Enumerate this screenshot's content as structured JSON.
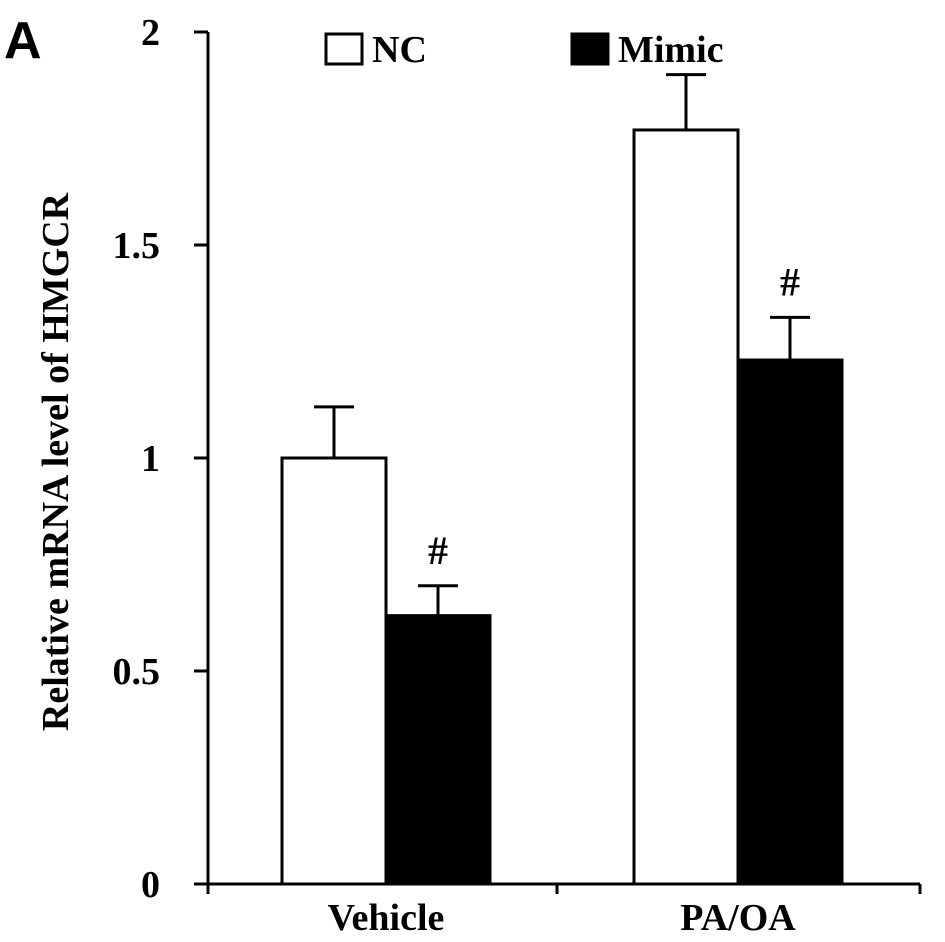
{
  "panel_label": "A",
  "chart_data": {
    "type": "bar",
    "categories": [
      "Vehicle",
      "PA/OA"
    ],
    "series": [
      {
        "name": "NC",
        "values": [
          1.0,
          1.77
        ],
        "errors": [
          0.12,
          0.13
        ],
        "color": "#ffffff"
      },
      {
        "name": "Mimic",
        "values": [
          0.63,
          1.23
        ],
        "errors": [
          0.07,
          0.1
        ],
        "color": "#000000"
      }
    ],
    "annotations": [
      {
        "series": "Mimic",
        "category": "Vehicle",
        "text": "#"
      },
      {
        "series": "Mimic",
        "category": "PA/OA",
        "text": "#"
      }
    ],
    "ylabel": "Relative mRNA level of HMGCR",
    "xlabel": "",
    "ylim": [
      0,
      2
    ],
    "yticks": [
      0,
      0.5,
      1,
      1.5,
      2
    ],
    "ytick_labels": [
      "0",
      "0.5",
      "1",
      "1.5",
      "2"
    ],
    "legend_position": "top",
    "grid": false
  }
}
